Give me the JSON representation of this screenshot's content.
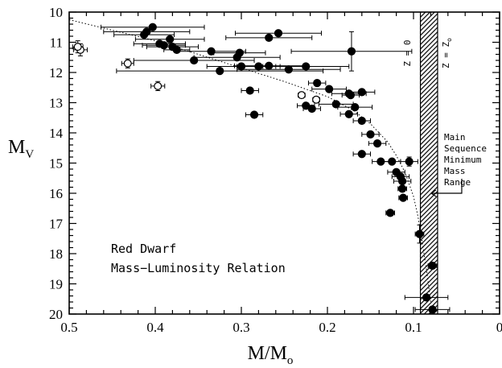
{
  "chart_data": {
    "type": "scatter",
    "title": "",
    "xlabel": "M/M",
    "xlabel_sub": "o",
    "ylabel": "M",
    "ylabel_sub": "V",
    "xlim": [
      0.5,
      0
    ],
    "ylim": [
      10,
      20
    ],
    "y_inverted": true,
    "x_inverted": true,
    "grid": false,
    "x_ticks": [
      "0.5",
      "0.4",
      "0.3",
      "0.2",
      "0.1",
      "0"
    ],
    "x_tick_values": [
      0.5,
      0.4,
      0.3,
      0.2,
      0.1,
      0
    ],
    "y_ticks": [
      "10",
      "11",
      "12",
      "13",
      "14",
      "15",
      "16",
      "17",
      "18",
      "19",
      "20"
    ],
    "y_tick_values": [
      10,
      11,
      12,
      13,
      14,
      15,
      16,
      17,
      18,
      19,
      20
    ],
    "annotation_lines": [
      "Red Dwarf",
      "Mass−Luminosity Relation"
    ],
    "band": {
      "x_range": [
        0.092,
        0.072
      ],
      "labels": [
        "Z = 0",
        "Z = Z"
      ],
      "label_sub": "o"
    },
    "range_note_lines": [
      "Main",
      "Sequence",
      "Minimum",
      "Mass",
      "Range"
    ],
    "range_note_arrow_y": 16.0,
    "curve": {
      "x": [
        0.5,
        0.45,
        0.4,
        0.35,
        0.3,
        0.25,
        0.2,
        0.17,
        0.15,
        0.13,
        0.12,
        0.11,
        0.1,
        0.095,
        0.09,
        0.085,
        0.08
      ],
      "y": [
        10.25,
        10.6,
        10.95,
        11.4,
        11.85,
        12.3,
        12.8,
        13.25,
        13.7,
        14.3,
        14.75,
        15.3,
        16.1,
        16.75,
        17.6,
        18.5,
        19.6
      ]
    },
    "filled_points": [
      {
        "x": 0.403,
        "y": 10.5,
        "xerr": 0.06
      },
      {
        "x": 0.41,
        "y": 10.65,
        "xerr": 0.05
      },
      {
        "x": 0.413,
        "y": 10.75,
        "xerr": 0.035
      },
      {
        "x": 0.395,
        "y": 11.05,
        "xerr": 0.03
      },
      {
        "x": 0.39,
        "y": 11.1,
        "xerr": 0.025
      },
      {
        "x": 0.383,
        "y": 10.9,
        "xerr": 0.04
      },
      {
        "x": 0.38,
        "y": 11.15,
        "xerr": 0.03
      },
      {
        "x": 0.375,
        "y": 11.25,
        "xerr": 0.015
      },
      {
        "x": 0.335,
        "y": 11.3,
        "xerr": 0.04
      },
      {
        "x": 0.302,
        "y": 11.35,
        "xerr": 0.03
      },
      {
        "x": 0.305,
        "y": 11.5,
        "xerr": 0.05
      },
      {
        "x": 0.355,
        "y": 11.6,
        "xerr": 0.07
      },
      {
        "x": 0.325,
        "y": 11.95,
        "xerr": 0.12
      },
      {
        "x": 0.3,
        "y": 11.8,
        "xerr": 0.04
      },
      {
        "x": 0.28,
        "y": 11.8,
        "xerr": 0.025
      },
      {
        "x": 0.268,
        "y": 11.78,
        "xerr": 0.04
      },
      {
        "x": 0.268,
        "y": 10.85,
        "xerr": 0.05
      },
      {
        "x": 0.257,
        "y": 10.7,
        "xerr": 0.05
      },
      {
        "x": 0.245,
        "y": 11.9,
        "xerr": 0.06
      },
      {
        "x": 0.225,
        "y": 11.8,
        "xerr": 0.05
      },
      {
        "x": 0.172,
        "y": 11.3,
        "xerr": 0.07,
        "yerr": 0.65
      },
      {
        "x": 0.29,
        "y": 12.6,
        "xerr": 0.01
      },
      {
        "x": 0.285,
        "y": 13.4,
        "xerr": 0.01
      },
      {
        "x": 0.212,
        "y": 12.35,
        "xerr": 0.01
      },
      {
        "x": 0.198,
        "y": 12.55,
        "xerr": 0.02
      },
      {
        "x": 0.175,
        "y": 12.7,
        "xerr": 0.02
      },
      {
        "x": 0.173,
        "y": 12.75,
        "xerr": 0.01
      },
      {
        "x": 0.16,
        "y": 12.65,
        "xerr": 0.015
      },
      {
        "x": 0.225,
        "y": 13.1,
        "xerr": 0.01
      },
      {
        "x": 0.218,
        "y": 13.2,
        "xerr": 0.01
      },
      {
        "x": 0.19,
        "y": 13.05,
        "xerr": 0.02
      },
      {
        "x": 0.175,
        "y": 13.38,
        "xerr": 0.01
      },
      {
        "x": 0.168,
        "y": 13.15,
        "xerr": 0.02
      },
      {
        "x": 0.16,
        "y": 13.6,
        "xerr": 0.01
      },
      {
        "x": 0.15,
        "y": 14.05,
        "xerr": 0.01
      },
      {
        "x": 0.142,
        "y": 14.35,
        "xerr": 0.01
      },
      {
        "x": 0.16,
        "y": 14.7,
        "xerr": 0.01
      },
      {
        "x": 0.138,
        "y": 14.95,
        "xerr": 0.01
      },
      {
        "x": 0.125,
        "y": 14.95,
        "xerr": 0.01
      },
      {
        "x": 0.105,
        "y": 14.95,
        "xerr": 0.01,
        "yerr": 0.15
      },
      {
        "x": 0.12,
        "y": 15.3,
        "xerr": 0.01
      },
      {
        "x": 0.115,
        "y": 15.45,
        "xerr": 0.01
      },
      {
        "x": 0.113,
        "y": 15.6,
        "xerr": 0.01
      },
      {
        "x": 0.113,
        "y": 15.85,
        "xerr": 0.005
      },
      {
        "x": 0.112,
        "y": 16.15,
        "xerr": 0.005
      },
      {
        "x": 0.127,
        "y": 16.65,
        "xerr": 0.005
      },
      {
        "x": 0.093,
        "y": 17.35,
        "xerr": 0.005,
        "yerr": 0.3
      },
      {
        "x": 0.078,
        "y": 18.4,
        "xerr": 0.005
      },
      {
        "x": 0.085,
        "y": 19.45,
        "xerr": 0.025
      },
      {
        "x": 0.078,
        "y": 19.85,
        "xerr": 0.02
      }
    ],
    "open_points": [
      {
        "x": 0.487,
        "y": 11.25,
        "xerr": 0.008,
        "yerr": 0.2
      },
      {
        "x": 0.49,
        "y": 11.15,
        "xerr": 0.006,
        "yerr": 0.2
      },
      {
        "x": 0.432,
        "y": 11.7,
        "xerr": 0.007,
        "yerr": 0.15
      },
      {
        "x": 0.397,
        "y": 12.45,
        "xerr": 0.008,
        "yerr": 0.15
      },
      {
        "x": 0.23,
        "y": 12.75,
        "xerr": 0.004,
        "yerr": 0.1
      },
      {
        "x": 0.213,
        "y": 12.9,
        "xerr": 0.004,
        "yerr": 0.1
      }
    ]
  }
}
